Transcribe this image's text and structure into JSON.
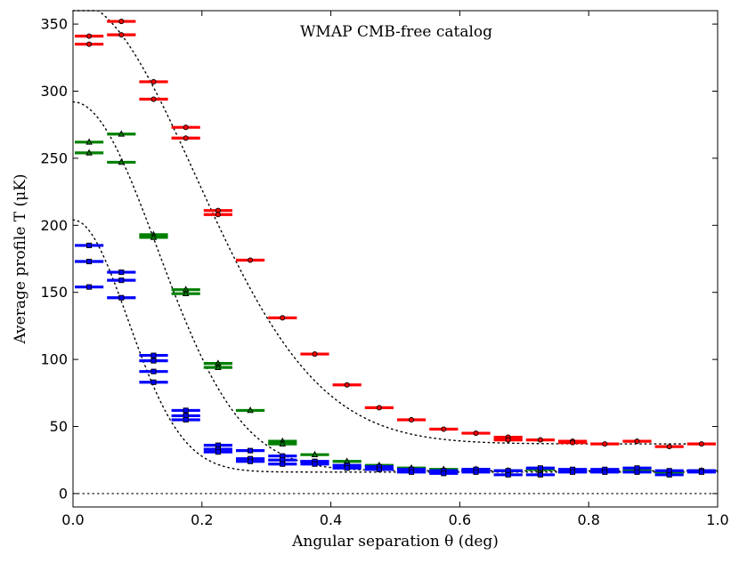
{
  "chart_data": {
    "type": "scatter",
    "title": "WMAP CMB-free catalog",
    "xlabel": "Angular separation θ (deg)",
    "ylabel": "Average profile T (μK)",
    "xlim": [
      0.0,
      1.0
    ],
    "ylim": [
      -10,
      360
    ],
    "xticks": [
      0.0,
      0.2,
      0.4,
      0.6,
      0.8,
      1.0
    ],
    "xtick_labels": [
      "0.0",
      "0.2",
      "0.4",
      "0.6",
      "0.8",
      "1.0"
    ],
    "yticks": [
      0,
      50,
      100,
      150,
      200,
      250,
      300,
      350
    ],
    "ytick_labels": [
      "0",
      "50",
      "100",
      "150",
      "200",
      "250",
      "300",
      "350"
    ],
    "bin_half_width": 0.025,
    "zero_line": true,
    "series": [
      {
        "name": "red",
        "color": "#ff0000",
        "marker": "circle",
        "points": [
          [
            0.025,
            341
          ],
          [
            0.025,
            335
          ],
          [
            0.075,
            352
          ],
          [
            0.075,
            342
          ],
          [
            0.125,
            307
          ],
          [
            0.125,
            294
          ],
          [
            0.175,
            273
          ],
          [
            0.175,
            265
          ],
          [
            0.225,
            211
          ],
          [
            0.225,
            208
          ],
          [
            0.275,
            174
          ],
          [
            0.325,
            131
          ],
          [
            0.375,
            104
          ],
          [
            0.425,
            81
          ],
          [
            0.475,
            64
          ],
          [
            0.525,
            55
          ],
          [
            0.575,
            48
          ],
          [
            0.625,
            45
          ],
          [
            0.675,
            42
          ],
          [
            0.675,
            40
          ],
          [
            0.725,
            40
          ],
          [
            0.775,
            39
          ],
          [
            0.775,
            38
          ],
          [
            0.825,
            37
          ],
          [
            0.875,
            39
          ],
          [
            0.925,
            35
          ],
          [
            0.975,
            37
          ]
        ],
        "model": {
          "type": "gaussian_plus_offset",
          "amplitude": 330,
          "sigma": 0.19,
          "offset": 37
        }
      },
      {
        "name": "green",
        "color": "#008000",
        "marker": "triangle",
        "points": [
          [
            0.025,
            262
          ],
          [
            0.025,
            254
          ],
          [
            0.075,
            268
          ],
          [
            0.075,
            247
          ],
          [
            0.125,
            193
          ],
          [
            0.125,
            191
          ],
          [
            0.175,
            152
          ],
          [
            0.175,
            149
          ],
          [
            0.225,
            97
          ],
          [
            0.225,
            94
          ],
          [
            0.275,
            62
          ],
          [
            0.325,
            39
          ],
          [
            0.325,
            37
          ],
          [
            0.375,
            29
          ],
          [
            0.425,
            24
          ],
          [
            0.475,
            21
          ],
          [
            0.525,
            19
          ],
          [
            0.575,
            18
          ],
          [
            0.625,
            18
          ],
          [
            0.675,
            17
          ],
          [
            0.725,
            18
          ],
          [
            0.775,
            17
          ],
          [
            0.825,
            17
          ],
          [
            0.875,
            17
          ],
          [
            0.925,
            16
          ],
          [
            0.975,
            17
          ]
        ],
        "model": {
          "type": "gaussian_plus_offset",
          "amplitude": 275,
          "sigma": 0.13,
          "offset": 17
        }
      },
      {
        "name": "blue",
        "color": "#0000ff",
        "marker": "square",
        "points": [
          [
            0.025,
            185
          ],
          [
            0.025,
            173
          ],
          [
            0.025,
            154
          ],
          [
            0.075,
            165
          ],
          [
            0.075,
            159
          ],
          [
            0.075,
            146
          ],
          [
            0.125,
            103
          ],
          [
            0.125,
            99
          ],
          [
            0.125,
            91
          ],
          [
            0.125,
            83
          ],
          [
            0.175,
            62
          ],
          [
            0.175,
            58
          ],
          [
            0.175,
            55
          ],
          [
            0.225,
            36
          ],
          [
            0.225,
            33
          ],
          [
            0.225,
            31
          ],
          [
            0.275,
            32
          ],
          [
            0.275,
            26
          ],
          [
            0.275,
            24
          ],
          [
            0.325,
            28
          ],
          [
            0.325,
            25
          ],
          [
            0.325,
            22
          ],
          [
            0.375,
            24
          ],
          [
            0.375,
            22
          ],
          [
            0.425,
            21
          ],
          [
            0.425,
            19
          ],
          [
            0.475,
            20
          ],
          [
            0.475,
            18
          ],
          [
            0.525,
            18
          ],
          [
            0.525,
            16
          ],
          [
            0.575,
            17
          ],
          [
            0.575,
            15
          ],
          [
            0.625,
            18
          ],
          [
            0.625,
            16
          ],
          [
            0.675,
            17
          ],
          [
            0.675,
            14
          ],
          [
            0.725,
            19
          ],
          [
            0.725,
            14
          ],
          [
            0.775,
            18
          ],
          [
            0.775,
            16
          ],
          [
            0.825,
            18
          ],
          [
            0.825,
            16
          ],
          [
            0.875,
            19
          ],
          [
            0.875,
            16
          ],
          [
            0.925,
            17
          ],
          [
            0.925,
            14
          ],
          [
            0.975,
            17
          ],
          [
            0.975,
            16
          ]
        ],
        "model": {
          "type": "gaussian_plus_offset",
          "amplitude": 188,
          "sigma": 0.085,
          "offset": 16
        }
      }
    ]
  }
}
